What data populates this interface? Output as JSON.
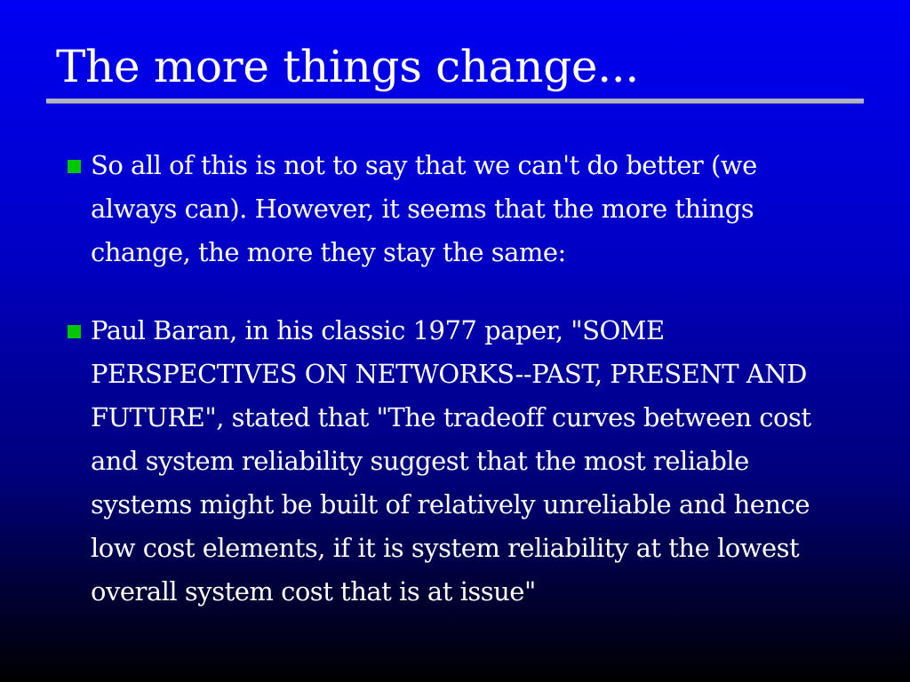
{
  "slide": {
    "title": "The more things change...",
    "bullet_color": "#00c800",
    "bullets": [
      {
        "text": "So all of this is not to say that we can't do better (we always can). However, it seems that the more things change, the more they stay the same:"
      },
      {
        "text": "Paul Baran, in his classic 1977 paper, \"SOME PERSPECTIVES ON NETWORKS--PAST, PRESENT AND FUTURE\", stated that \"The tradeoff curves between cost and system reliability suggest that the most reliable systems might be built of relatively unreliable and hence low cost elements, if it is system reliability at the lowest overall system cost that is at issue\""
      }
    ]
  }
}
